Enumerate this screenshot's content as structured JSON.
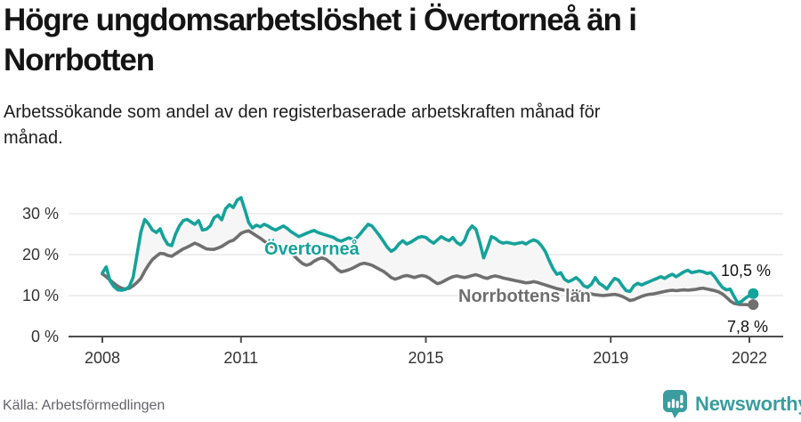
{
  "header": {
    "title_lines": [
      "Högre ungdomsarbetslöshet i Övertorneå än i",
      "Norrbotten"
    ],
    "subtitle_lines": [
      "Arbetssökande som andel av den registerbaserade arbetskraften månad för",
      "månad."
    ]
  },
  "footer": {
    "source": "Källa: Arbetsförmedlingen",
    "brand": "Newsworthy",
    "brand_color": "#3b9d9d"
  },
  "chart_data": {
    "type": "line",
    "unit": "%",
    "frequency": "monthly",
    "x_start": {
      "year": 2008,
      "month": 1
    },
    "x_end": {
      "year": 2022,
      "month": 2
    },
    "ylim": [
      0,
      35
    ],
    "grid": "horizontal",
    "legend_position": "inline-labels",
    "band_fill": "#f6f6f6",
    "grid_color": "#dcdcdc",
    "axis_color": "#4d4d4d",
    "tick_label_color": "#333333",
    "y_ticks": [
      {
        "value": 0,
        "label": "0 %"
      },
      {
        "value": 10,
        "label": "10 %"
      },
      {
        "value": 20,
        "label": "20 %"
      },
      {
        "value": 30,
        "label": "30 %"
      }
    ],
    "x_ticks": [
      {
        "value": 2008,
        "label": "2008"
      },
      {
        "value": 2011,
        "label": "2011"
      },
      {
        "value": 2015,
        "label": "2015"
      },
      {
        "value": 2019,
        "label": "2019"
      },
      {
        "value": 2022,
        "label": "2022"
      }
    ],
    "series": [
      {
        "name": "Övertorneå",
        "color": "#15a29a",
        "end_label": "10,5 %",
        "end_value": 10.5,
        "values": [
          15.5,
          17.0,
          13.6,
          12.2,
          11.4,
          11.3,
          11.5,
          12.2,
          14.5,
          20.0,
          25.5,
          28.6,
          27.5,
          26.0,
          25.4,
          26.3,
          24.0,
          22.5,
          22.2,
          25.0,
          27.0,
          28.3,
          28.6,
          28.0,
          27.4,
          28.3,
          26.0,
          26.2,
          27.0,
          29.0,
          29.6,
          28.5,
          31.2,
          32.2,
          31.5,
          33.3,
          33.9,
          31.0,
          27.8,
          26.5,
          27.2,
          26.8,
          27.4,
          27.0,
          26.4,
          26.0,
          26.5,
          27.0,
          26.4,
          25.6,
          25.0,
          24.4,
          24.8,
          25.2,
          25.6,
          25.9,
          25.4,
          25.1,
          24.8,
          24.5,
          24.2,
          23.6,
          23.3,
          23.7,
          24.1,
          23.7,
          24.1,
          25.1,
          26.3,
          27.4,
          27.0,
          25.8,
          24.6,
          23.2,
          21.8,
          20.8,
          21.4,
          22.6,
          23.4,
          22.6,
          23.0,
          23.6,
          24.2,
          24.4,
          24.2,
          23.4,
          22.8,
          23.6,
          24.4,
          23.8,
          23.4,
          24.2,
          23.0,
          22.4,
          23.4,
          25.8,
          27.0,
          26.2,
          23.0,
          19.2,
          21.6,
          24.4,
          24.0,
          23.2,
          22.8,
          23.0,
          22.8,
          22.6,
          22.8,
          23.0,
          22.6,
          23.2,
          23.6,
          23.2,
          22.2,
          20.8,
          18.6,
          16.6,
          15.2,
          15.6,
          14.0,
          13.4,
          13.8,
          14.4,
          13.6,
          12.4,
          12.0,
          12.8,
          14.4,
          13.0,
          12.4,
          11.6,
          13.0,
          14.2,
          13.8,
          12.4,
          11.2,
          11.0,
          12.4,
          13.0,
          12.6,
          13.0,
          13.4,
          13.8,
          14.2,
          14.6,
          14.2,
          14.8,
          15.2,
          14.6,
          15.2,
          15.8,
          16.2,
          15.6,
          15.8,
          16.0,
          15.8,
          15.4,
          15.6,
          14.6,
          13.2,
          12.0,
          11.4,
          11.6,
          9.8,
          8.2,
          8.6,
          9.4,
          10.0,
          10.5
        ]
      },
      {
        "name": "Norrbottens län",
        "color": "#6f6f6f",
        "end_label": "7,8 %",
        "end_value": 7.8,
        "values": [
          15.3,
          14.6,
          13.8,
          13.0,
          12.3,
          11.8,
          11.6,
          11.8,
          12.4,
          13.2,
          14.2,
          16.0,
          17.5,
          18.8,
          19.6,
          20.3,
          20.2,
          19.8,
          19.6,
          20.2,
          20.8,
          21.4,
          21.8,
          22.3,
          22.8,
          22.4,
          21.9,
          21.4,
          21.3,
          21.3,
          21.6,
          22.0,
          22.6,
          23.2,
          23.5,
          24.3,
          25.2,
          25.6,
          25.8,
          25.2,
          24.6,
          24.0,
          23.3,
          22.6,
          22.0,
          21.6,
          21.4,
          21.6,
          21.2,
          20.4,
          19.5,
          18.6,
          17.8,
          17.4,
          17.7,
          18.4,
          18.9,
          19.2,
          18.9,
          18.2,
          17.4,
          16.4,
          15.8,
          16.0,
          16.3,
          16.7,
          17.2,
          17.7,
          17.9,
          17.7,
          17.4,
          16.9,
          16.4,
          15.9,
          15.2,
          14.4,
          14.0,
          14.3,
          14.7,
          14.9,
          14.7,
          14.4,
          14.7,
          14.9,
          14.7,
          14.2,
          13.5,
          12.9,
          13.2,
          13.7,
          14.2,
          14.6,
          14.8,
          14.6,
          14.4,
          14.6,
          14.9,
          15.1,
          14.8,
          14.4,
          14.2,
          14.6,
          14.8,
          14.6,
          14.3,
          14.1,
          13.9,
          13.7,
          13.5,
          13.3,
          13.1,
          13.2,
          13.4,
          13.2,
          12.9,
          12.6,
          12.3,
          12.0,
          11.7,
          11.5,
          11.3,
          11.1,
          11.0,
          11.1,
          10.9,
          10.7,
          10.5,
          10.4,
          10.2,
          10.1,
          10.0,
          10.1,
          10.2,
          10.3,
          10.1,
          9.8,
          9.3,
          8.8,
          9.0,
          9.4,
          9.8,
          10.1,
          10.3,
          10.4,
          10.6,
          10.8,
          11.0,
          11.2,
          11.3,
          11.2,
          11.3,
          11.4,
          11.3,
          11.4,
          11.5,
          11.7,
          11.8,
          11.6,
          11.4,
          11.2,
          10.9,
          10.4,
          9.6,
          8.7,
          8.1,
          7.9,
          7.8,
          7.8,
          7.7,
          7.8
        ]
      }
    ]
  }
}
